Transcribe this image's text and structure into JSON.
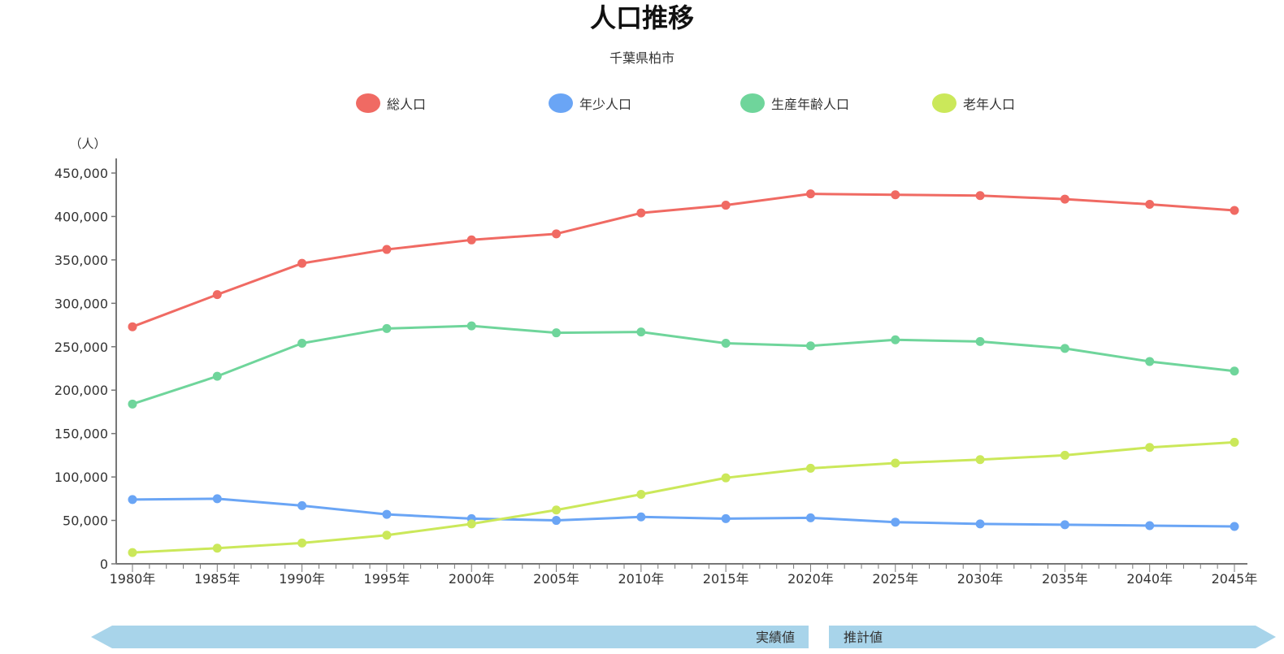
{
  "title": "人口推移",
  "subtitle": "千葉県柏市",
  "footer": {
    "actual_label": "実績値",
    "projected_label": "推計値",
    "arrow_color": "#a8d4ea"
  },
  "chart_data": {
    "type": "line",
    "title": "人口推移",
    "subtitle": "千葉県柏市",
    "ylabel": "（人）",
    "xlabel": "",
    "ylim": [
      0,
      450000
    ],
    "y_ticks": [
      0,
      50000,
      100000,
      150000,
      200000,
      250000,
      300000,
      350000,
      400000,
      450000
    ],
    "y_tick_labels": [
      "0",
      "50,000",
      "100,000",
      "150,000",
      "200,000",
      "250,000",
      "300,000",
      "350,000",
      "400,000",
      "450,000"
    ],
    "categories": [
      "1980年",
      "1985年",
      "1990年",
      "1995年",
      "2000年",
      "2005年",
      "2010年",
      "2015年",
      "2020年",
      "2025年",
      "2030年",
      "2035年",
      "2040年",
      "2045年"
    ],
    "legend_position": "top",
    "grid": false,
    "series": [
      {
        "name": "総人口",
        "color": "#f06a63",
        "values": [
          273000,
          310000,
          346000,
          362000,
          373000,
          380000,
          404000,
          413000,
          426000,
          425000,
          424000,
          420000,
          414000,
          407000
        ]
      },
      {
        "name": "年少人口",
        "color": "#6aa5f5",
        "values": [
          74000,
          75000,
          67000,
          57000,
          52000,
          50000,
          54000,
          52000,
          53000,
          48000,
          46000,
          45000,
          44000,
          43000
        ]
      },
      {
        "name": "生産年齢人口",
        "color": "#6fd59b",
        "values": [
          184000,
          216000,
          254000,
          271000,
          274000,
          266000,
          267000,
          254000,
          251000,
          258000,
          256000,
          248000,
          233000,
          222000
        ]
      },
      {
        "name": "老年人口",
        "color": "#cbe85a",
        "values": [
          13000,
          18000,
          24000,
          33000,
          46000,
          62000,
          80000,
          99000,
          110000,
          116000,
          120000,
          125000,
          134000,
          140000
        ]
      }
    ]
  }
}
